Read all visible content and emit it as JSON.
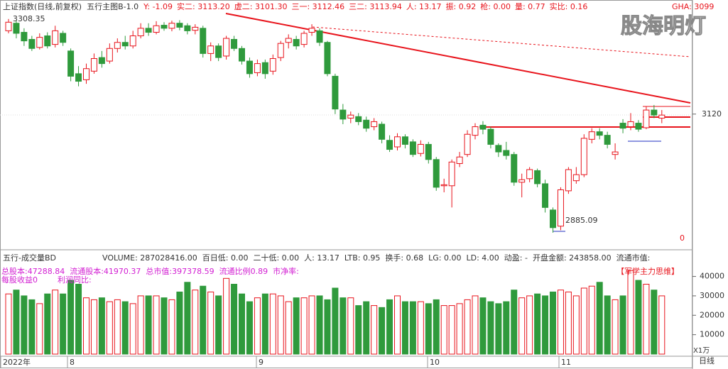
{
  "header": {
    "title": "上证指数(日线,前复权)",
    "indicator": "五行主图B-1.0",
    "stats": [
      "Y: -1.09",
      "实二: 3113.20",
      "虚二: 3101.30",
      "三一: 3112.46",
      "三二: 3113.94",
      "人: 13.17",
      "振: 0.92",
      "枪: 0.00",
      "量: 0.77",
      "实比: 0.16"
    ],
    "gha": "GHA: 3099"
  },
  "watermark": "股海明灯",
  "volume_header": {
    "title": "五行-成交量BD",
    "stats": [
      "VOLUME: 287028416.00",
      "百日低: 0.00",
      "二十低: 0.00",
      "人: 13.17",
      "LTB: 0.95",
      "换手: 0.68",
      "LG: 0.00",
      "LD: 4.00",
      "动盈: -",
      "开盘金额: 243858.00",
      "流通市值:"
    ]
  },
  "info": {
    "line1": [
      "总股本:47288.84",
      "流通股本:41970.37",
      "总市值:397378.59",
      "流通比例0.89",
      "市净率:"
    ],
    "line2": [
      "每股收益0",
      "利润同比:"
    ],
    "tag": "【军学主力思维】"
  },
  "footer": {
    "xlabels": [
      "2022年",
      "8",
      "9",
      "10",
      "11"
    ],
    "period": "日线",
    "volume_unit": "X1万"
  },
  "chart_data": {
    "type": "candlestick",
    "annotations": {
      "high": "3308.35",
      "low": "2885.09",
      "zero": "0"
    },
    "ylim": [
      2861,
      3346
    ],
    "yticks": [
      3120
    ],
    "vlim": [
      0,
      53000
    ],
    "vticks": [
      10000,
      20000,
      30000,
      40000
    ],
    "up_color": "#e8141c",
    "down_color": "#2f9a3c",
    "open": [
      3285,
      3300,
      3282,
      3268,
      3252,
      3275,
      3258,
      3280,
      3245,
      3200,
      3188,
      3205,
      3232,
      3225,
      3250,
      3262,
      3255,
      3275,
      3290,
      3282,
      3296,
      3290,
      3300,
      3295,
      3286,
      3290,
      3240,
      3255,
      3235,
      3268,
      3250,
      3225,
      3202,
      3222,
      3205,
      3232,
      3262,
      3268,
      3258,
      3282,
      3285,
      3262,
      3195,
      3128,
      3112,
      3115,
      3108,
      3095,
      3100,
      3068,
      3055,
      3075,
      3065,
      3042,
      3060,
      3030,
      2978,
      2978,
      3022,
      3040,
      3078,
      3098,
      3090,
      3058,
      3048,
      3040,
      2985,
      2992,
      3008,
      2982,
      2930,
      2898,
      2968,
      2988,
      3000,
      3070,
      3085,
      3078,
      3040,
      3102,
      3095,
      3102,
      3093,
      3128,
      3112
    ],
    "close": [
      3302,
      3280,
      3265,
      3250,
      3272,
      3255,
      3285,
      3262,
      3195,
      3185,
      3210,
      3230,
      3220,
      3250,
      3262,
      3255,
      3275,
      3290,
      3282,
      3295,
      3290,
      3300,
      3292,
      3285,
      3292,
      3240,
      3255,
      3232,
      3270,
      3250,
      3225,
      3200,
      3220,
      3200,
      3230,
      3260,
      3270,
      3255,
      3280,
      3290,
      3262,
      3200,
      3130,
      3110,
      3118,
      3105,
      3092,
      3105,
      3070,
      3050,
      3075,
      3060,
      3040,
      3060,
      3030,
      2975,
      2980,
      3025,
      3035,
      3080,
      3095,
      3090,
      3060,
      3045,
      3038,
      2985,
      2990,
      3010,
      2982,
      2935,
      2895,
      2970,
      3010,
      3000,
      3072,
      3085,
      3078,
      3060,
      3045,
      3092,
      3105,
      3090,
      3128,
      3118,
      3118
    ],
    "high": [
      3308.35,
      3305,
      3290,
      3275,
      3280,
      3282,
      3295,
      3285,
      3250,
      3215,
      3220,
      3240,
      3245,
      3260,
      3270,
      3275,
      3285,
      3300,
      3300,
      3304,
      3302,
      3305,
      3306,
      3300,
      3298,
      3295,
      3262,
      3260,
      3275,
      3275,
      3255,
      3232,
      3228,
      3228,
      3238,
      3265,
      3278,
      3275,
      3285,
      3298,
      3290,
      3265,
      3200,
      3140,
      3125,
      3122,
      3115,
      3112,
      3105,
      3078,
      3082,
      3080,
      3070,
      3068,
      3065,
      3035,
      2992,
      3030,
      3045,
      3088,
      3102,
      3106,
      3095,
      3062,
      3065,
      3045,
      3002,
      3015,
      3012,
      2990,
      2935,
      2975,
      3015,
      3015,
      3080,
      3092,
      3092,
      3085,
      3062,
      3110,
      3122,
      3108,
      3135,
      3138,
      3128
    ],
    "low": [
      3280,
      3270,
      3255,
      3245,
      3248,
      3250,
      3252,
      3255,
      3185,
      3175,
      3180,
      3200,
      3212,
      3220,
      3242,
      3248,
      3250,
      3270,
      3275,
      3278,
      3285,
      3284,
      3286,
      3278,
      3278,
      3232,
      3225,
      3225,
      3228,
      3245,
      3218,
      3192,
      3195,
      3190,
      3198,
      3225,
      3250,
      3248,
      3252,
      3275,
      3255,
      3195,
      3120,
      3100,
      3102,
      3098,
      3085,
      3088,
      3062,
      3045,
      3048,
      3052,
      3035,
      3036,
      3022,
      2968,
      2965,
      2935,
      3015,
      3035,
      3070,
      3080,
      3052,
      3035,
      3030,
      2978,
      2955,
      2985,
      2975,
      2925,
      2885.09,
      2890,
      2962,
      2982,
      2995,
      3062,
      3070,
      3052,
      3030,
      3082,
      3088,
      3085,
      3090,
      3112,
      3102
    ],
    "volume": [
      31000,
      33000,
      30000,
      28000,
      26000,
      31000,
      33000,
      31000,
      38000,
      36000,
      29000,
      28000,
      29000,
      27000,
      28000,
      27000,
      26000,
      30000,
      30000,
      30000,
      29000,
      28000,
      32000,
      37000,
      33000,
      35000,
      32000,
      30000,
      39000,
      36000,
      31000,
      27000,
      29000,
      31000,
      31000,
      30000,
      27000,
      29000,
      29000,
      30000,
      30000,
      28000,
      34000,
      29000,
      29000,
      25000,
      27000,
      25000,
      24000,
      28000,
      30000,
      27000,
      27000,
      27000,
      26000,
      28000,
      25000,
      25000,
      26000,
      28000,
      30000,
      29000,
      27000,
      26000,
      27000,
      33000,
      29000,
      30000,
      31000,
      30000,
      32000,
      33000,
      32000,
      30000,
      34000,
      35000,
      37000,
      30000,
      28000,
      30000,
      43000,
      38000,
      36000,
      33000,
      30000
    ]
  }
}
